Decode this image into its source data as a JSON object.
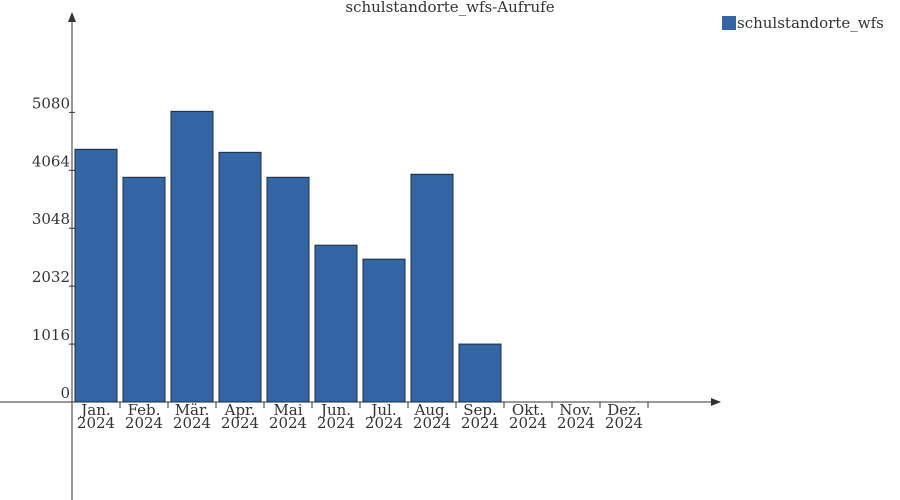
{
  "chart_data": {
    "type": "bar",
    "title": "schulstandorte_wfs-Aufrufe",
    "categories": [
      [
        "Jan.",
        "2024"
      ],
      [
        "Feb.",
        "2024"
      ],
      [
        "Mär.",
        "2024"
      ],
      [
        "Apr.",
        "2024"
      ],
      [
        "Mai",
        "2024"
      ],
      [
        "Jun.",
        "2024"
      ],
      [
        "Jul.",
        "2024"
      ],
      [
        "Aug.",
        "2024"
      ],
      [
        "Sep.",
        "2024"
      ],
      [
        "Okt.",
        "2024"
      ],
      [
        "Nov.",
        "2024"
      ],
      [
        "Dez.",
        "2024"
      ]
    ],
    "series": [
      {
        "name": "schulstandorte_wfs",
        "color": "#3465a4",
        "values": [
          4432,
          3941,
          5098,
          4379,
          3941,
          2750,
          2505,
          3994,
          1016,
          0,
          0,
          0
        ]
      }
    ],
    "ylim": [
      0,
      6700
    ],
    "yticks": [
      0,
      1016,
      2032,
      3048,
      4064,
      5080
    ],
    "legend": "top-right"
  }
}
